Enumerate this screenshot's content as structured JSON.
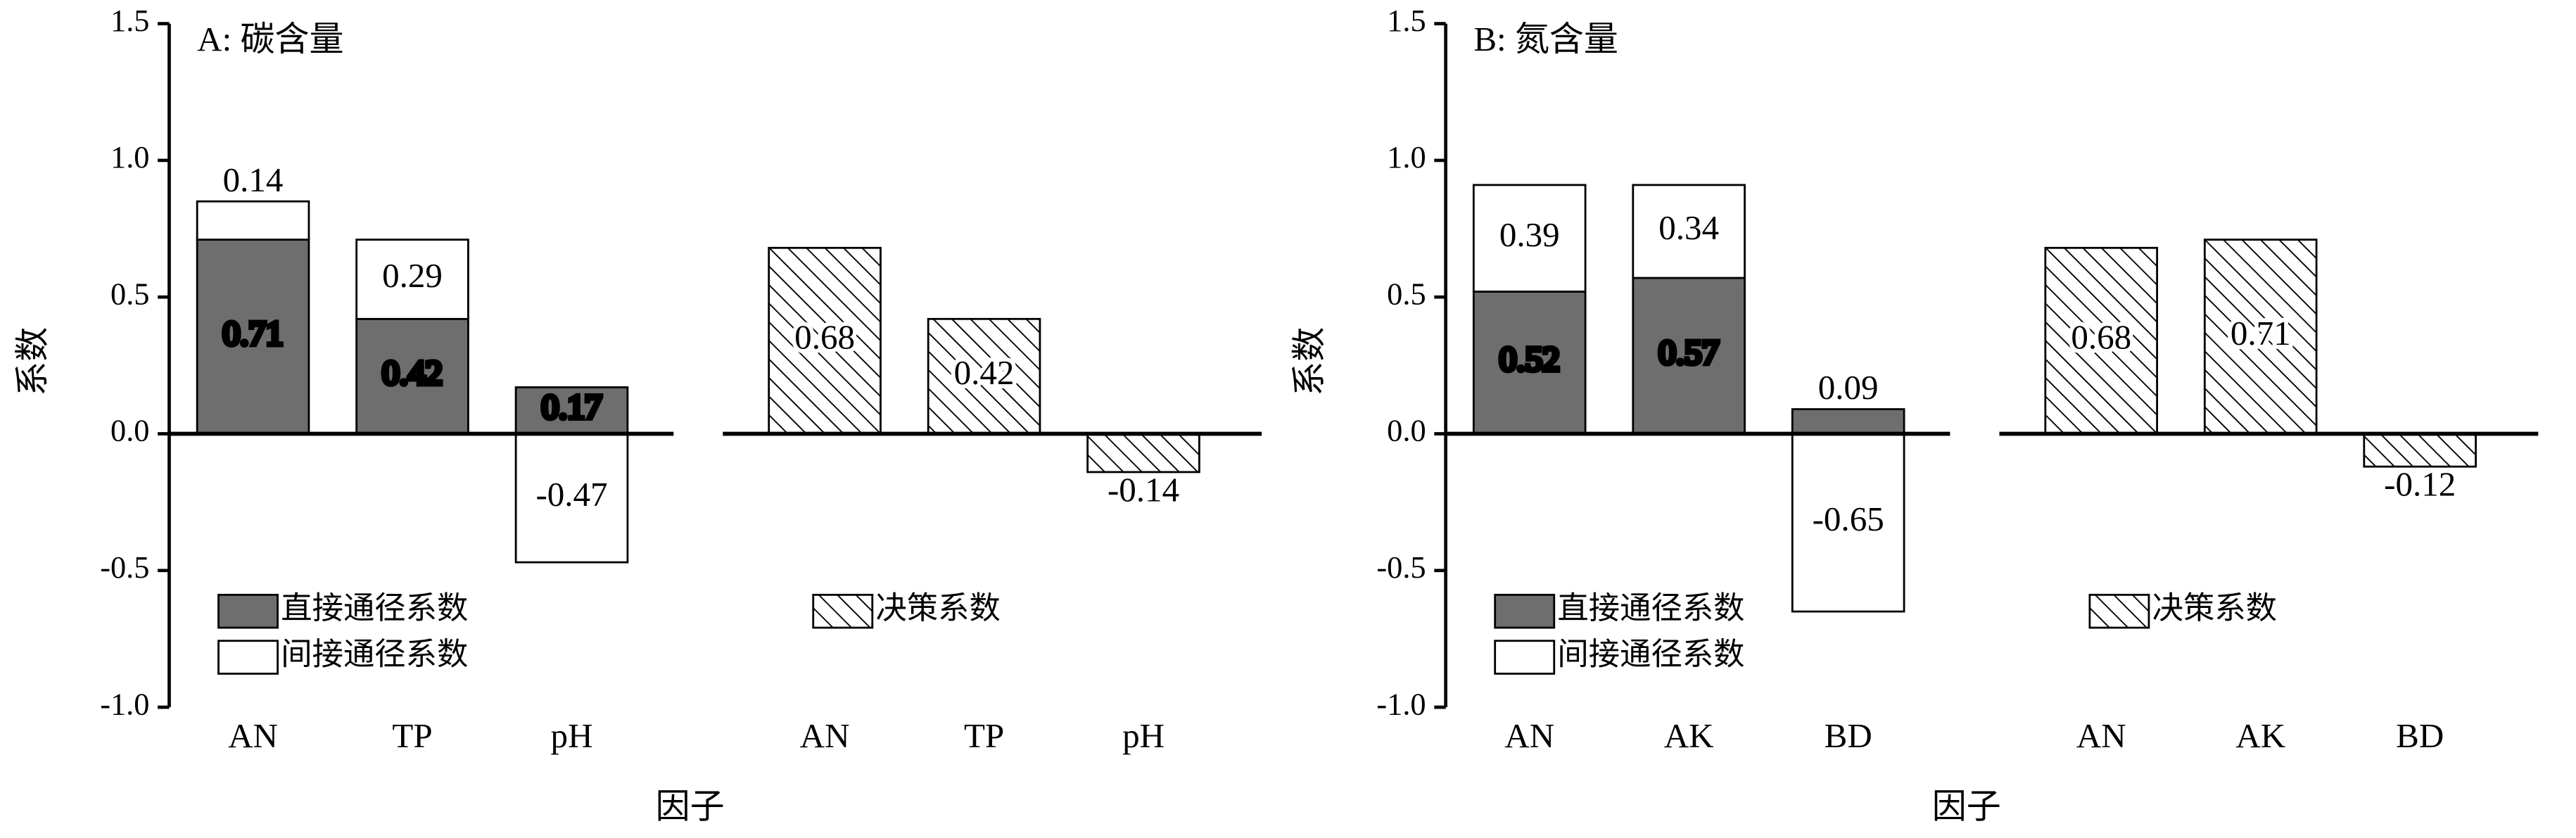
{
  "chart_data": [
    {
      "type": "bar",
      "title": "A: 碳含量",
      "ylabel": "系数",
      "xlabel": "因子",
      "ylim": [
        -1,
        1.5
      ],
      "yticks": [
        {
          "value": -1,
          "label": "-1.0"
        },
        -0.5,
        {
          "value": 0,
          "label": "0.0"
        },
        0.5,
        {
          "value": 1,
          "label": "1.0"
        },
        1.5
      ],
      "groups": [
        {
          "categories": [
            "AN",
            "TP",
            "pH"
          ],
          "stacked": true,
          "series": [
            {
              "name": "直接通径系数",
              "color": "#6e6e6e",
              "pattern": "solid",
              "values": [
                0.71,
                0.42,
                0.17
              ]
            },
            {
              "name": "间接通径系数",
              "color": "#ffffff",
              "pattern": "solid",
              "values": [
                0.14,
                0.29,
                -0.47
              ]
            }
          ]
        },
        {
          "categories": [
            "AN",
            "TP",
            "pH"
          ],
          "stacked": false,
          "series": [
            {
              "name": "决策系数",
              "color": "#ffffff",
              "pattern": "hatch",
              "values": [
                0.68,
                0.42,
                -0.14
              ]
            }
          ]
        }
      ]
    },
    {
      "type": "bar",
      "title": "B: 氮含量",
      "ylabel": "系数",
      "xlabel": "因子",
      "ylim": [
        -1,
        1.5
      ],
      "yticks": [
        {
          "value": -1,
          "label": "-1.0"
        },
        -0.5,
        {
          "value": 0,
          "label": "0.0"
        },
        0.5,
        {
          "value": 1,
          "label": "1.0"
        },
        1.5
      ],
      "groups": [
        {
          "categories": [
            "AN",
            "AK",
            "BD"
          ],
          "stacked": true,
          "series": [
            {
              "name": "直接通径系数",
              "color": "#6e6e6e",
              "pattern": "solid",
              "values": [
                0.52,
                0.57,
                0.09
              ]
            },
            {
              "name": "间接通径系数",
              "color": "#ffffff",
              "pattern": "solid",
              "values": [
                0.39,
                0.34,
                -0.65
              ]
            }
          ]
        },
        {
          "categories": [
            "AN",
            "AK",
            "BD"
          ],
          "stacked": false,
          "series": [
            {
              "name": "决策系数",
              "color": "#ffffff",
              "pattern": "hatch",
              "values": [
                0.68,
                0.71,
                -0.12
              ]
            }
          ]
        }
      ]
    }
  ]
}
